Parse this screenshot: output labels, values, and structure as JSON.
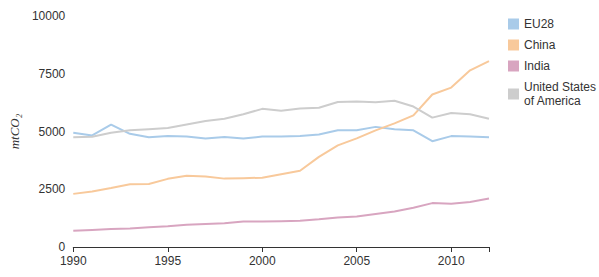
{
  "chart_data": {
    "type": "line",
    "y_label": "mtCO₂",
    "x": [
      1990,
      1991,
      1992,
      1993,
      1994,
      1995,
      1996,
      1997,
      1998,
      1999,
      2000,
      2001,
      2002,
      2003,
      2004,
      2005,
      2006,
      2007,
      2008,
      2009,
      2010,
      2011,
      2012
    ],
    "xlim": [
      1990,
      2012
    ],
    "xticks": [
      1990,
      1995,
      2000,
      2005,
      2010
    ],
    "ylim": [
      0,
      10000
    ],
    "yticks": [
      0,
      2500,
      5000,
      7500,
      10000
    ],
    "grid": false,
    "legend": "right",
    "series": [
      {
        "name": "EU28",
        "color": "#a9cbe9",
        "values": [
          4950,
          4830,
          5300,
          4900,
          4750,
          4800,
          4780,
          4700,
          4760,
          4700,
          4780,
          4780,
          4800,
          4870,
          5050,
          5050,
          5200,
          5100,
          5050,
          4580,
          4800,
          4780,
          4750
        ]
      },
      {
        "name": "China",
        "color": "#f8c99b",
        "values": [
          2300,
          2400,
          2550,
          2720,
          2730,
          2950,
          3080,
          3050,
          2960,
          2980,
          3000,
          3150,
          3300,
          3900,
          4400,
          4700,
          5050,
          5350,
          5700,
          6600,
          6900,
          7650,
          8050
        ]
      },
      {
        "name": "India",
        "color": "#d8a5c0",
        "values": [
          700,
          740,
          780,
          800,
          850,
          900,
          960,
          1000,
          1030,
          1100,
          1100,
          1120,
          1140,
          1200,
          1280,
          1320,
          1430,
          1540,
          1700,
          1900,
          1870,
          1950,
          2100
        ]
      },
      {
        "name": "United States of America",
        "color": "#cdcdcd",
        "values": [
          4750,
          4770,
          4950,
          5050,
          5100,
          5150,
          5300,
          5450,
          5550,
          5750,
          5980,
          5900,
          6000,
          6030,
          6280,
          6300,
          6270,
          6330,
          6080,
          5600,
          5800,
          5750,
          5550
        ]
      }
    ]
  }
}
